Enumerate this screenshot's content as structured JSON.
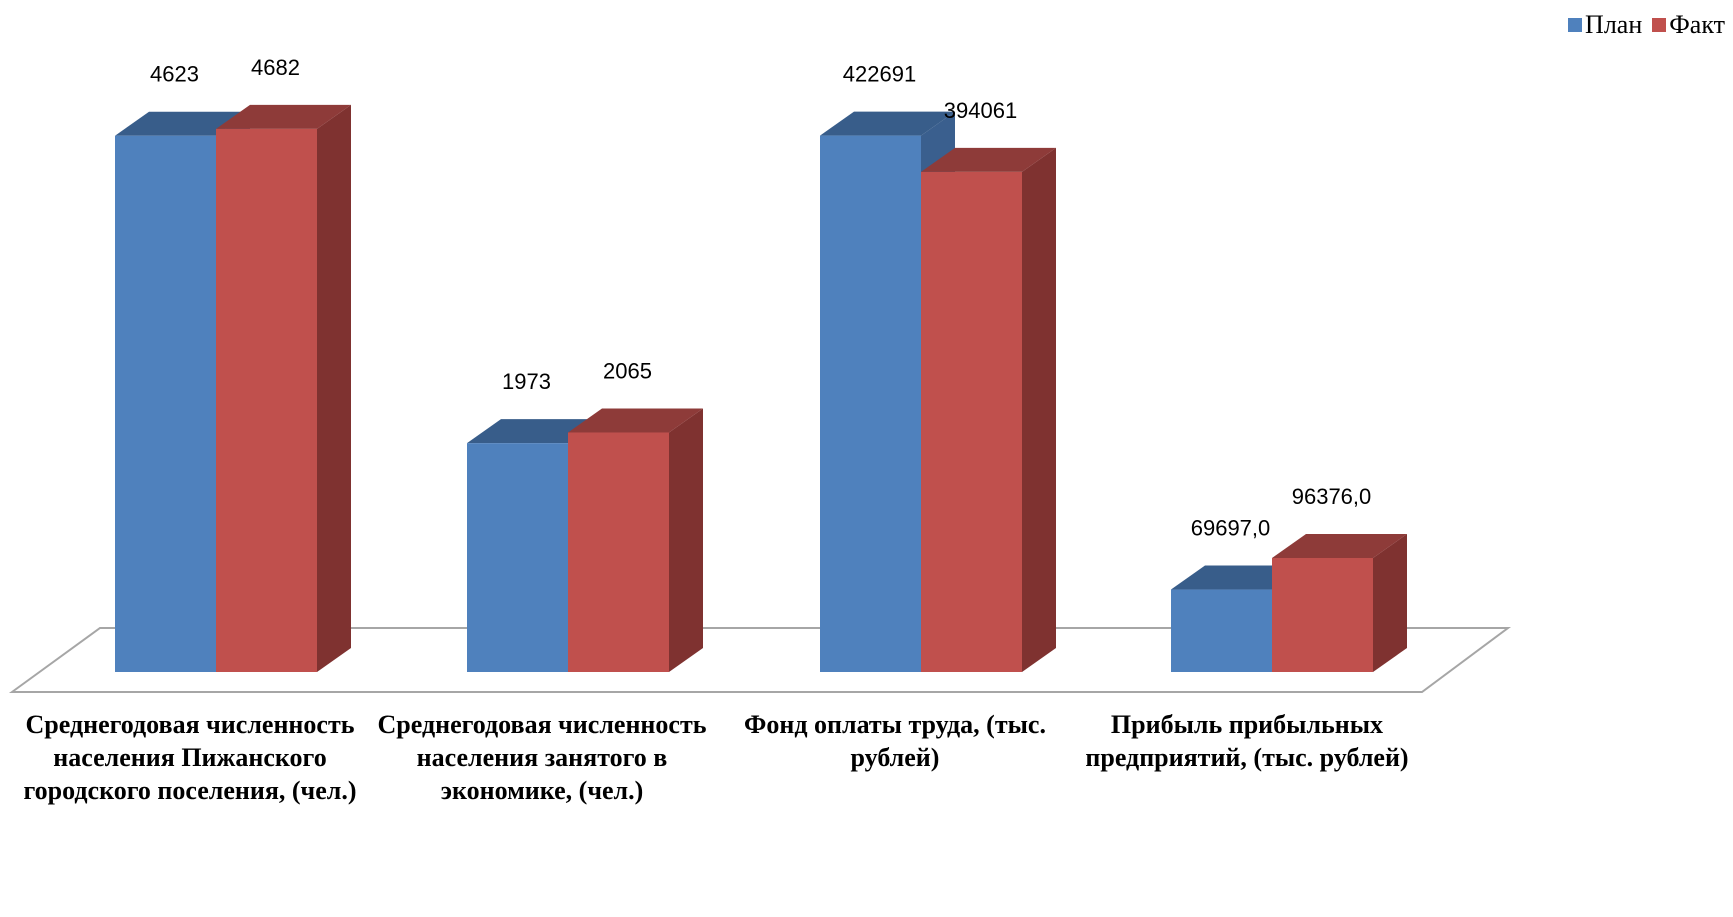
{
  "colors": {
    "plan": "#4F81BD",
    "plan_top": "#385D8A",
    "plan_side": "#3A5F8E",
    "fact": "#C0504D",
    "fact_top": "#8E3B39",
    "fact_side": "#7F3230",
    "floor_stroke": "#A6A6A6"
  },
  "legend": {
    "plan": "План",
    "fact": "Факт"
  },
  "chart_data": {
    "type": "bar",
    "categories": [
      "Среднегодовая численность населения Пижанского городского поселения, (чел.)",
      "Среднегодовая численность населения занятого в экономике, (чел.)",
      "Фонд оплаты труда, (тыс. рублей)",
      "Прибыль прибыльных предприятий, (тыс. рублей)"
    ],
    "series": [
      {
        "name": "План",
        "values": [
          4623,
          1973,
          422691,
          69697.0
        ],
        "labels": [
          "4623",
          "1973",
          "422691",
          "69697,0"
        ]
      },
      {
        "name": "Факт",
        "values": [
          4682,
          2065,
          394061,
          96376.0
        ],
        "labels": [
          "4682",
          "2065",
          "394061",
          "96376,0"
        ]
      }
    ],
    "legend_position": "top-right",
    "grid": false
  }
}
